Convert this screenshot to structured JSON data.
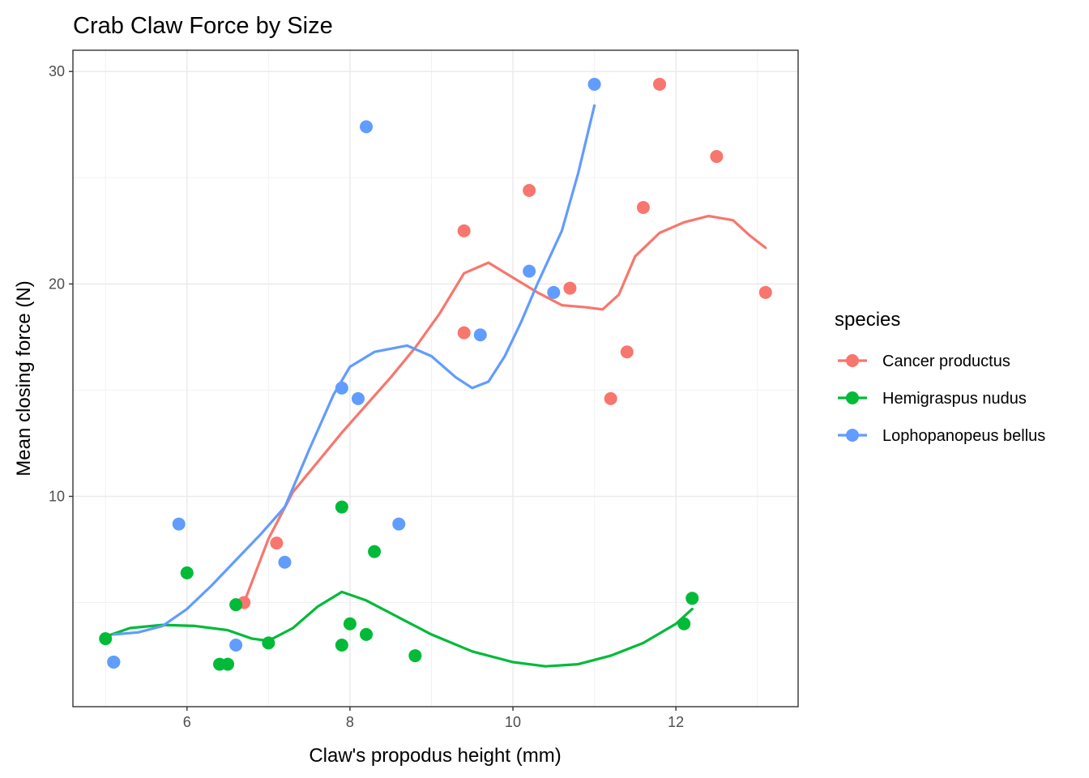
{
  "chart_data": {
    "type": "scatter",
    "title": "Crab Claw Force by Size",
    "xlabel": "Claw's propodus height (mm)",
    "ylabel": "Mean closing force (N)",
    "xlim": [
      4.6,
      13.5
    ],
    "ylim": [
      0.1,
      31.0
    ],
    "x_ticks": [
      6,
      8,
      10,
      12
    ],
    "y_ticks": [
      10,
      20,
      30
    ],
    "x_minor_ticks": [
      5,
      7,
      9,
      11,
      13
    ],
    "y_minor_ticks": [
      5,
      15,
      25
    ],
    "grid": true,
    "legend_title": "species",
    "legend_position": "right",
    "series": [
      {
        "name": "Cancer productus",
        "color": "#F8766D",
        "points": [
          [
            6.7,
            5.0
          ],
          [
            7.1,
            7.8
          ],
          [
            9.4,
            17.7
          ],
          [
            9.4,
            22.5
          ],
          [
            10.2,
            24.4
          ],
          [
            10.7,
            19.8
          ],
          [
            11.2,
            14.6
          ],
          [
            11.4,
            16.8
          ],
          [
            11.6,
            23.6
          ],
          [
            11.8,
            29.4
          ],
          [
            12.5,
            26.0
          ],
          [
            13.1,
            19.6
          ]
        ],
        "smooth": [
          [
            6.7,
            5.0
          ],
          [
            7.0,
            8.0
          ],
          [
            7.3,
            10.2
          ],
          [
            7.6,
            11.6
          ],
          [
            7.9,
            13.0
          ],
          [
            8.2,
            14.3
          ],
          [
            8.5,
            15.6
          ],
          [
            8.8,
            17.0
          ],
          [
            9.1,
            18.6
          ],
          [
            9.4,
            20.5
          ],
          [
            9.7,
            21.0
          ],
          [
            10.0,
            20.3
          ],
          [
            10.3,
            19.6
          ],
          [
            10.6,
            19.0
          ],
          [
            10.9,
            18.9
          ],
          [
            11.1,
            18.8
          ],
          [
            11.3,
            19.5
          ],
          [
            11.5,
            21.3
          ],
          [
            11.8,
            22.4
          ],
          [
            12.1,
            22.9
          ],
          [
            12.4,
            23.2
          ],
          [
            12.7,
            23.0
          ],
          [
            12.9,
            22.3
          ],
          [
            13.1,
            21.7
          ]
        ]
      },
      {
        "name": "Hemigraspus nudus",
        "color": "#00BA38",
        "points": [
          [
            5.0,
            3.3
          ],
          [
            5.1,
            2.2
          ],
          [
            6.0,
            6.4
          ],
          [
            6.4,
            2.1
          ],
          [
            6.5,
            2.1
          ],
          [
            6.6,
            4.9
          ],
          [
            7.0,
            3.1
          ],
          [
            7.9,
            3.0
          ],
          [
            7.9,
            9.5
          ],
          [
            8.0,
            4.0
          ],
          [
            8.2,
            3.5
          ],
          [
            8.3,
            7.4
          ],
          [
            8.8,
            2.5
          ],
          [
            12.1,
            4.0
          ],
          [
            12.2,
            5.2
          ]
        ],
        "smooth": [
          [
            5.0,
            3.4
          ],
          [
            5.3,
            3.8
          ],
          [
            5.7,
            3.95
          ],
          [
            6.1,
            3.9
          ],
          [
            6.5,
            3.7
          ],
          [
            6.8,
            3.3
          ],
          [
            7.0,
            3.2
          ],
          [
            7.3,
            3.8
          ],
          [
            7.6,
            4.8
          ],
          [
            7.9,
            5.5
          ],
          [
            8.2,
            5.1
          ],
          [
            8.6,
            4.3
          ],
          [
            9.0,
            3.5
          ],
          [
            9.5,
            2.7
          ],
          [
            10.0,
            2.2
          ],
          [
            10.4,
            2.0
          ],
          [
            10.8,
            2.1
          ],
          [
            11.2,
            2.5
          ],
          [
            11.6,
            3.1
          ],
          [
            12.0,
            4.0
          ],
          [
            12.2,
            4.7
          ]
        ]
      },
      {
        "name": "Lophopanopeus bellus",
        "color": "#619CFF",
        "points": [
          [
            5.1,
            2.2
          ],
          [
            5.9,
            8.7
          ],
          [
            6.6,
            3.0
          ],
          [
            7.2,
            6.9
          ],
          [
            7.9,
            15.1
          ],
          [
            8.1,
            14.6
          ],
          [
            8.2,
            27.4
          ],
          [
            8.6,
            8.7
          ],
          [
            9.6,
            17.6
          ],
          [
            10.2,
            20.6
          ],
          [
            10.5,
            19.6
          ],
          [
            11.0,
            29.4
          ]
        ],
        "smooth": [
          [
            5.1,
            3.5
          ],
          [
            5.4,
            3.6
          ],
          [
            5.7,
            3.9
          ],
          [
            6.0,
            4.7
          ],
          [
            6.3,
            5.8
          ],
          [
            6.6,
            7.0
          ],
          [
            6.9,
            8.2
          ],
          [
            7.2,
            9.5
          ],
          [
            7.5,
            12.2
          ],
          [
            7.8,
            14.8
          ],
          [
            8.0,
            16.1
          ],
          [
            8.3,
            16.8
          ],
          [
            8.7,
            17.1
          ],
          [
            9.0,
            16.6
          ],
          [
            9.3,
            15.6
          ],
          [
            9.5,
            15.1
          ],
          [
            9.7,
            15.4
          ],
          [
            9.9,
            16.6
          ],
          [
            10.1,
            18.2
          ],
          [
            10.3,
            20.0
          ],
          [
            10.6,
            22.5
          ],
          [
            10.8,
            25.2
          ],
          [
            11.0,
            28.4
          ]
        ]
      }
    ]
  }
}
